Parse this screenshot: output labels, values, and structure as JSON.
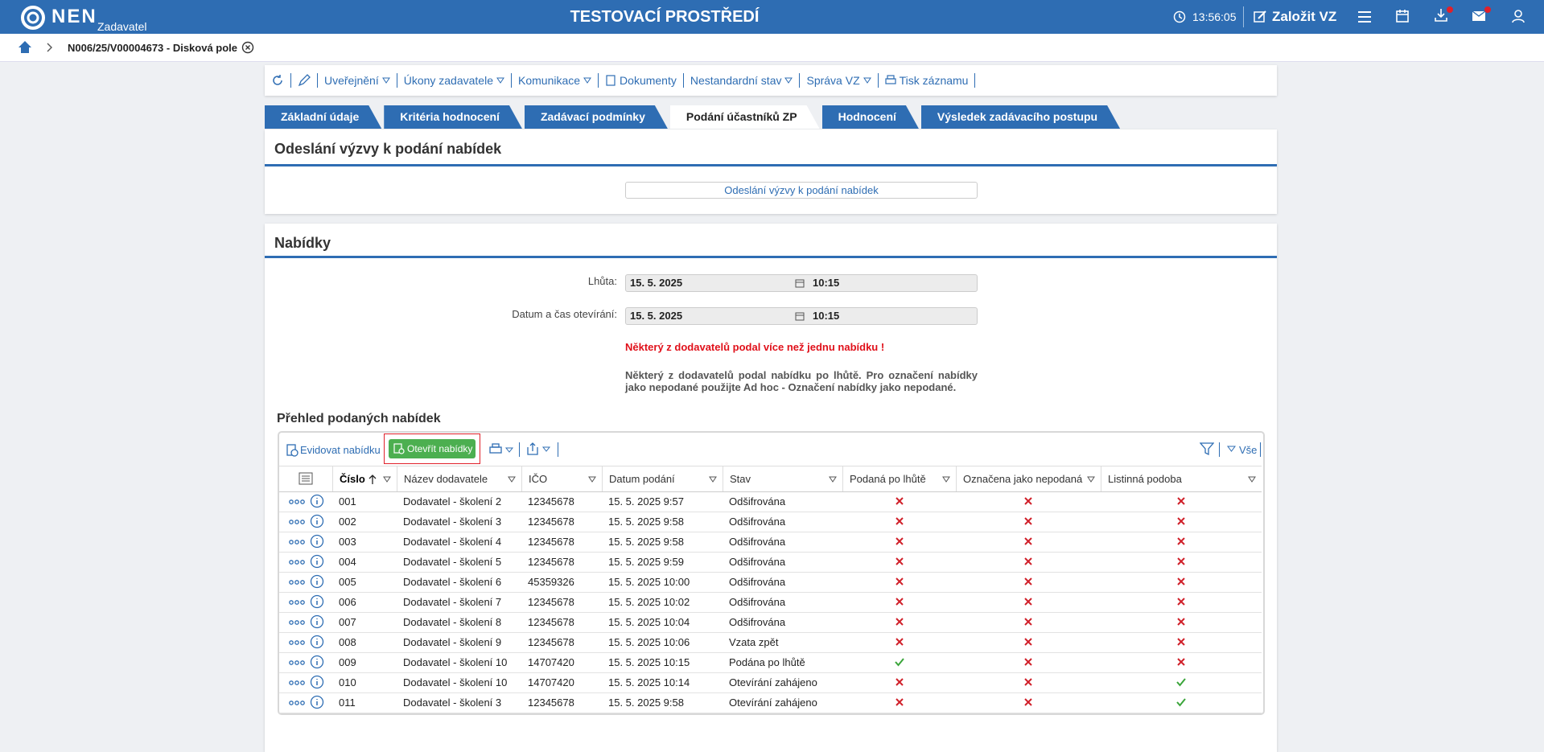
{
  "header": {
    "logo": "NEN",
    "role": "Zadavatel",
    "env_title": "TESTOVACÍ PROSTŘEDÍ",
    "time": "13:56:05",
    "create_button": "Založit VZ"
  },
  "breadcrumb": {
    "item": "N006/25/V00004673 - Disková pole"
  },
  "toolbar": [
    {
      "label": "Uveřejnění",
      "dropdown": true
    },
    {
      "label": "Úkony zadavatele",
      "dropdown": true
    },
    {
      "label": "Komunikace",
      "dropdown": true
    },
    {
      "label": "Dokumenty",
      "dropdown": false
    },
    {
      "label": "Nestandardní stav",
      "dropdown": true
    },
    {
      "label": "Správa VZ",
      "dropdown": true
    },
    {
      "label": "Tisk záznamu",
      "dropdown": false
    }
  ],
  "tabs": {
    "items": [
      "Základní údaje",
      "Kritéria hodnocení",
      "Zadávací podmínky",
      "Podání účastníků ZP",
      "Hodnocení",
      "Výsledek zadávacího postupu"
    ],
    "active": 3
  },
  "invite_section": {
    "title": "Odeslání výzvy k podání nabídek",
    "button": "Odeslání výzvy k podání nabídek"
  },
  "offers_section": {
    "title": "Nabídky",
    "deadline": {
      "label": "Lhůta:",
      "date": "15. 5. 2025",
      "time": "10:15"
    },
    "opening": {
      "label": "Datum a čas otevírání:",
      "date": "15. 5. 2025",
      "time": "10:15"
    },
    "warning": "Některý z dodavatelů podal více než jednu nabídku !",
    "note": "Některý z dodavatelů podal nabídku po lhůtě. Pro označení nabídky jako nepodané použijte Ad hoc - Označení nabídky jako nepodané."
  },
  "table": {
    "title": "Přehled podaných nabídek",
    "actions": {
      "register": "Evidovat nabídku",
      "open": "Otevřít nabídky",
      "filter_all": "Vše"
    },
    "columns": [
      "Číslo",
      "Název dodavatele",
      "IČO",
      "Datum podání",
      "Stav",
      "Podaná po lhůtě",
      "Označena jako nepodaná",
      "Listinná podoba"
    ],
    "sort_column": 0,
    "rows": [
      [
        "001",
        "Dodavatel - školení 2",
        "12345678",
        "15. 5. 2025 9:57",
        "Odšifrována",
        false,
        false,
        false
      ],
      [
        "002",
        "Dodavatel - školení 3",
        "12345678",
        "15. 5. 2025 9:58",
        "Odšifrována",
        false,
        false,
        false
      ],
      [
        "003",
        "Dodavatel - školení 4",
        "12345678",
        "15. 5. 2025 9:58",
        "Odšifrována",
        false,
        false,
        false
      ],
      [
        "004",
        "Dodavatel - školení 5",
        "12345678",
        "15. 5. 2025 9:59",
        "Odšifrována",
        false,
        false,
        false
      ],
      [
        "005",
        "Dodavatel - školení 6",
        "45359326",
        "15. 5. 2025 10:00",
        "Odšifrována",
        false,
        false,
        false
      ],
      [
        "006",
        "Dodavatel - školení 7",
        "12345678",
        "15. 5. 2025 10:02",
        "Odšifrována",
        false,
        false,
        false
      ],
      [
        "007",
        "Dodavatel - školení 8",
        "12345678",
        "15. 5. 2025 10:04",
        "Odšifrována",
        false,
        false,
        false
      ],
      [
        "008",
        "Dodavatel - školení 9",
        "12345678",
        "15. 5. 2025 10:06",
        "Vzata zpět",
        false,
        false,
        false
      ],
      [
        "009",
        "Dodavatel - školení 10",
        "14707420",
        "15. 5. 2025 10:15",
        "Podána po lhůtě",
        true,
        false,
        false
      ],
      [
        "010",
        "Dodavatel - školení 10",
        "14707420",
        "15. 5. 2025 10:14",
        "Otevírání zahájeno",
        false,
        false,
        true
      ],
      [
        "011",
        "Dodavatel - školení 3",
        "12345678",
        "15. 5. 2025 9:58",
        "Otevírání zahájeno",
        false,
        false,
        true
      ]
    ]
  }
}
